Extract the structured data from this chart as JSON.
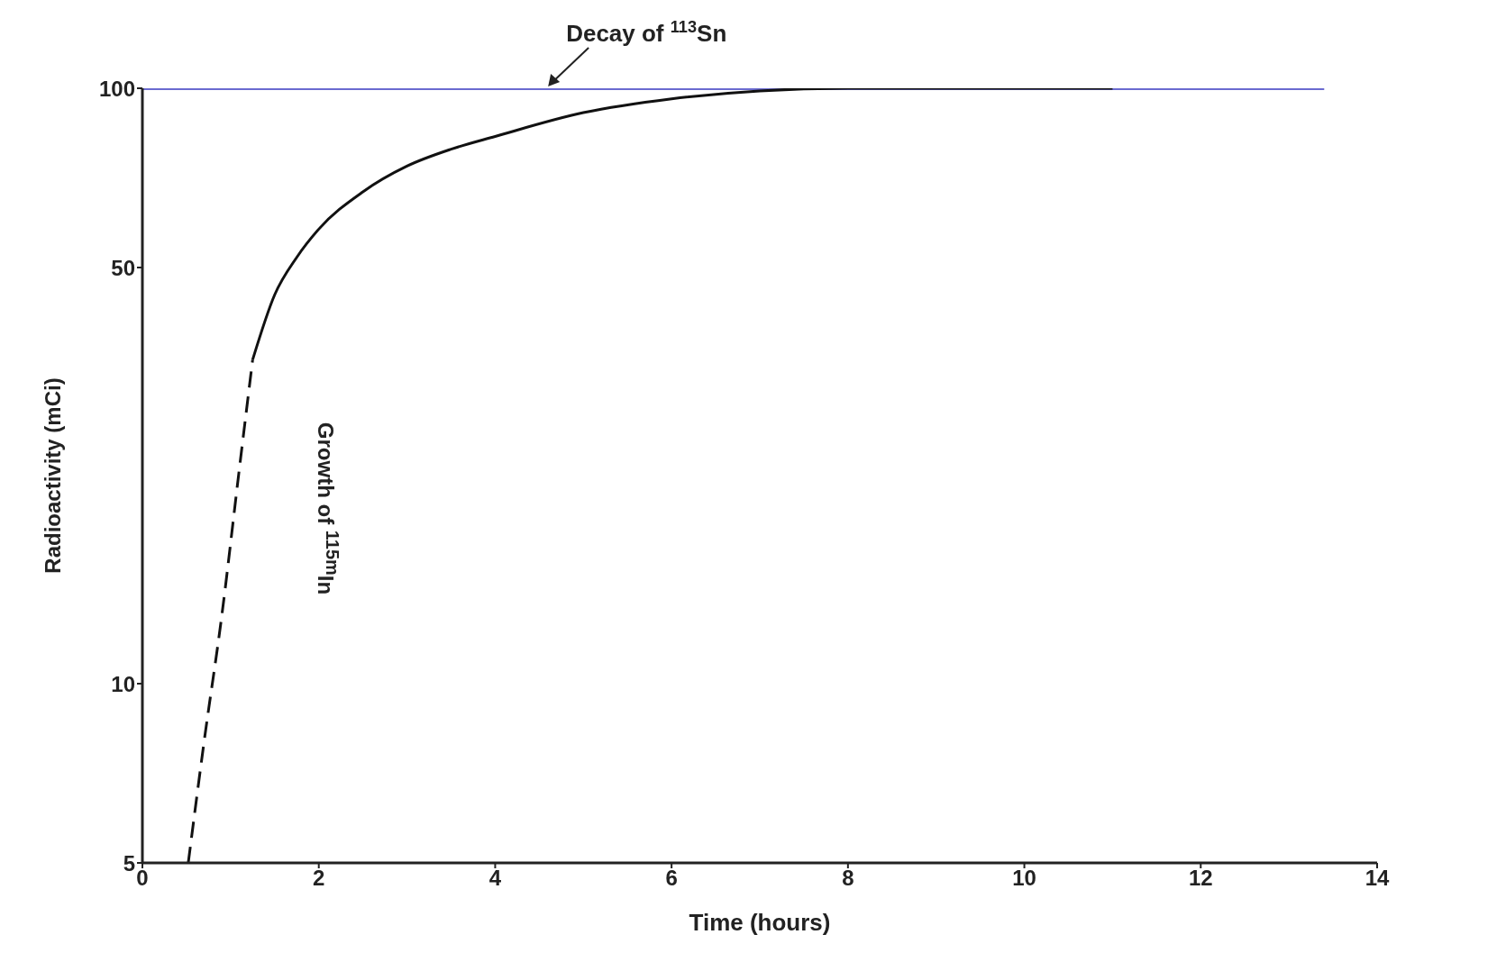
{
  "chart_data": {
    "type": "line",
    "xlabel": "Time (hours)",
    "ylabel": "Radioactivity (mCi)",
    "xlim": [
      0,
      14
    ],
    "xticks": [
      0,
      2,
      4,
      6,
      8,
      10,
      12,
      14
    ],
    "ylim": [
      5,
      100
    ],
    "yticks": [
      5,
      10,
      50,
      100
    ],
    "log": "y",
    "grid": false,
    "legend": false,
    "marker": "none",
    "series": [
      {
        "color": "#6b6bd0",
        "line_style": "solid",
        "x": [
          0,
          13.4
        ],
        "values": [
          100,
          100
        ]
      },
      {
        "color": "#111111",
        "line_style": "dashed",
        "x": [
          0.52,
          0.7,
          0.9,
          1.1,
          1.25
        ],
        "values": [
          5,
          8,
          13,
          23,
          35
        ]
      },
      {
        "color": "#111111",
        "line_style": "solid",
        "x": [
          1.25,
          1.5,
          1.75,
          2,
          2.5,
          3,
          3.5,
          4,
          5,
          6,
          7,
          8,
          11
        ],
        "values": [
          35,
          45,
          52,
          58,
          67,
          74,
          79,
          83,
          91,
          96,
          99,
          100,
          100
        ]
      }
    ],
    "annotations": [
      {
        "text": "Decay of $^{113}$Sn",
        "x": 4.6,
        "y": 100
      },
      "Growth of $^{115m}$In"
    ]
  }
}
